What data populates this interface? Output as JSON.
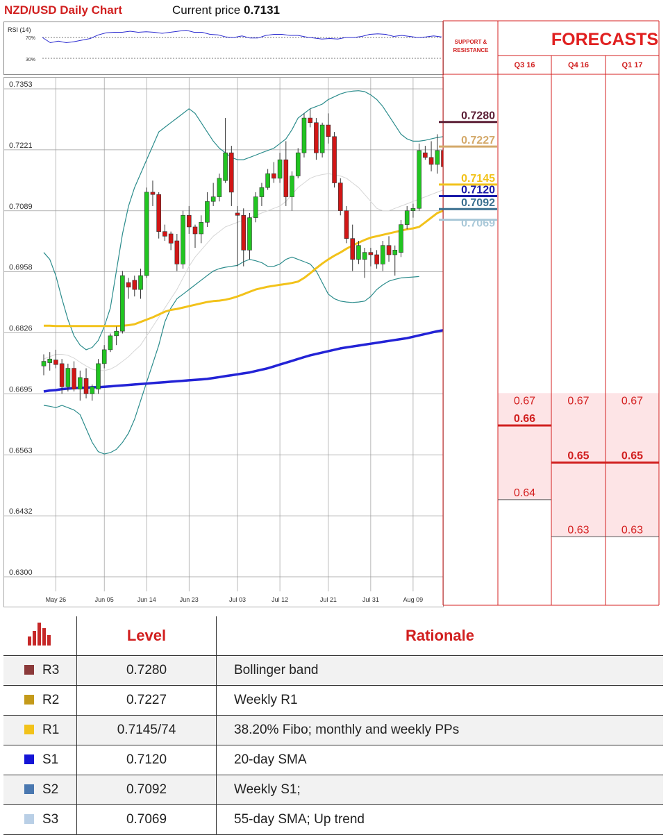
{
  "header": {
    "title": "NZD/USD Daily Chart",
    "price_prefix": "Current price ",
    "price_value": "0.7131"
  },
  "rsi": {
    "label": "RSI (14)",
    "levels": [
      "70%",
      "30%"
    ],
    "values": [
      70,
      60,
      63,
      60,
      62,
      65,
      68,
      75,
      79,
      80,
      80,
      82,
      80,
      81,
      80,
      78,
      80,
      82,
      84,
      80,
      80,
      76,
      75,
      71,
      70,
      73,
      69,
      69,
      74,
      76,
      76,
      74,
      74,
      71,
      69,
      67,
      68,
      67,
      70,
      70,
      72,
      76,
      77,
      76,
      72,
      74,
      72,
      70,
      71,
      73,
      71
    ]
  },
  "chart_data": {
    "type": "candlestick",
    "title": "NZD/USD Daily Chart",
    "ylim": [
      0.63,
      0.7353
    ],
    "y_ticks": [
      "0.7353",
      "0.7221",
      "0.7089",
      "0.6958",
      "0.6826",
      "0.6695",
      "0.6563",
      "0.6432",
      "0.6300"
    ],
    "x_tick_labels": [
      "May 26",
      "Jun 05",
      "Jun 14",
      "Jun 23",
      "Jul 03",
      "Jul 12",
      "Jul 21",
      "Jul 31",
      "Aug 09"
    ],
    "x_tick_indices": [
      2,
      10,
      17,
      24,
      32,
      39,
      47,
      54,
      61
    ],
    "candles": [
      {
        "o": 0.6755,
        "h": 0.678,
        "l": 0.6735,
        "c": 0.6765
      },
      {
        "o": 0.6762,
        "h": 0.6785,
        "l": 0.6745,
        "c": 0.677
      },
      {
        "o": 0.6768,
        "h": 0.679,
        "l": 0.675,
        "c": 0.6758
      },
      {
        "o": 0.676,
        "h": 0.677,
        "l": 0.6695,
        "c": 0.671
      },
      {
        "o": 0.671,
        "h": 0.676,
        "l": 0.67,
        "c": 0.675
      },
      {
        "o": 0.675,
        "h": 0.6765,
        "l": 0.67,
        "c": 0.6705
      },
      {
        "o": 0.6705,
        "h": 0.6745,
        "l": 0.668,
        "c": 0.673
      },
      {
        "o": 0.6728,
        "h": 0.675,
        "l": 0.6685,
        "c": 0.6695
      },
      {
        "o": 0.6695,
        "h": 0.6715,
        "l": 0.668,
        "c": 0.671
      },
      {
        "o": 0.6705,
        "h": 0.677,
        "l": 0.6695,
        "c": 0.676
      },
      {
        "o": 0.676,
        "h": 0.68,
        "l": 0.675,
        "c": 0.679
      },
      {
        "o": 0.679,
        "h": 0.6825,
        "l": 0.6785,
        "c": 0.682
      },
      {
        "o": 0.682,
        "h": 0.684,
        "l": 0.68,
        "c": 0.683
      },
      {
        "o": 0.683,
        "h": 0.696,
        "l": 0.6825,
        "c": 0.695
      },
      {
        "o": 0.6935,
        "h": 0.6945,
        "l": 0.69,
        "c": 0.6925
      },
      {
        "o": 0.694,
        "h": 0.695,
        "l": 0.6905,
        "c": 0.692
      },
      {
        "o": 0.692,
        "h": 0.6965,
        "l": 0.69,
        "c": 0.695
      },
      {
        "o": 0.695,
        "h": 0.714,
        "l": 0.6945,
        "c": 0.713
      },
      {
        "o": 0.713,
        "h": 0.7155,
        "l": 0.71,
        "c": 0.7125
      },
      {
        "o": 0.7125,
        "h": 0.713,
        "l": 0.703,
        "c": 0.7045
      },
      {
        "o": 0.7045,
        "h": 0.706,
        "l": 0.7025,
        "c": 0.7035
      },
      {
        "o": 0.704,
        "h": 0.7045,
        "l": 0.7005,
        "c": 0.702
      },
      {
        "o": 0.7025,
        "h": 0.704,
        "l": 0.696,
        "c": 0.6975
      },
      {
        "o": 0.6975,
        "h": 0.709,
        "l": 0.6965,
        "c": 0.708
      },
      {
        "o": 0.708,
        "h": 0.71,
        "l": 0.704,
        "c": 0.7055
      },
      {
        "o": 0.7055,
        "h": 0.706,
        "l": 0.701,
        "c": 0.704
      },
      {
        "o": 0.704,
        "h": 0.708,
        "l": 0.702,
        "c": 0.7065
      },
      {
        "o": 0.7065,
        "h": 0.713,
        "l": 0.7055,
        "c": 0.711
      },
      {
        "o": 0.711,
        "h": 0.715,
        "l": 0.71,
        "c": 0.712
      },
      {
        "o": 0.712,
        "h": 0.717,
        "l": 0.711,
        "c": 0.716
      },
      {
        "o": 0.7155,
        "h": 0.729,
        "l": 0.715,
        "c": 0.7215
      },
      {
        "o": 0.7215,
        "h": 0.723,
        "l": 0.71,
        "c": 0.713
      },
      {
        "o": 0.7085,
        "h": 0.71,
        "l": 0.697,
        "c": 0.708
      },
      {
        "o": 0.708,
        "h": 0.7095,
        "l": 0.697,
        "c": 0.7005
      },
      {
        "o": 0.7005,
        "h": 0.7085,
        "l": 0.6985,
        "c": 0.7075
      },
      {
        "o": 0.7075,
        "h": 0.713,
        "l": 0.7065,
        "c": 0.712
      },
      {
        "o": 0.712,
        "h": 0.715,
        "l": 0.71,
        "c": 0.714
      },
      {
        "o": 0.714,
        "h": 0.718,
        "l": 0.7135,
        "c": 0.717
      },
      {
        "o": 0.717,
        "h": 0.7195,
        "l": 0.715,
        "c": 0.716
      },
      {
        "o": 0.716,
        "h": 0.7215,
        "l": 0.715,
        "c": 0.72
      },
      {
        "o": 0.72,
        "h": 0.724,
        "l": 0.71,
        "c": 0.712
      },
      {
        "o": 0.712,
        "h": 0.7175,
        "l": 0.709,
        "c": 0.7165
      },
      {
        "o": 0.7165,
        "h": 0.7225,
        "l": 0.716,
        "c": 0.7215
      },
      {
        "o": 0.7215,
        "h": 0.73,
        "l": 0.7205,
        "c": 0.729
      },
      {
        "o": 0.729,
        "h": 0.731,
        "l": 0.727,
        "c": 0.728
      },
      {
        "o": 0.728,
        "h": 0.729,
        "l": 0.72,
        "c": 0.7215
      },
      {
        "o": 0.7215,
        "h": 0.728,
        "l": 0.7205,
        "c": 0.7275
      },
      {
        "o": 0.7275,
        "h": 0.73,
        "l": 0.7235,
        "c": 0.725
      },
      {
        "o": 0.725,
        "h": 0.726,
        "l": 0.714,
        "c": 0.715
      },
      {
        "o": 0.715,
        "h": 0.716,
        "l": 0.708,
        "c": 0.709
      },
      {
        "o": 0.709,
        "h": 0.71,
        "l": 0.702,
        "c": 0.703
      },
      {
        "o": 0.703,
        "h": 0.706,
        "l": 0.696,
        "c": 0.6985
      },
      {
        "o": 0.6985,
        "h": 0.7025,
        "l": 0.6975,
        "c": 0.7015
      },
      {
        "o": 0.6985,
        "h": 0.701,
        "l": 0.6945,
        "c": 0.7
      },
      {
        "o": 0.7,
        "h": 0.701,
        "l": 0.697,
        "c": 0.6995
      },
      {
        "o": 0.6995,
        "h": 0.7005,
        "l": 0.6965,
        "c": 0.6975
      },
      {
        "o": 0.6975,
        "h": 0.7025,
        "l": 0.696,
        "c": 0.7015
      },
      {
        "o": 0.7015,
        "h": 0.7035,
        "l": 0.698,
        "c": 0.6995
      },
      {
        "o": 0.6995,
        "h": 0.7015,
        "l": 0.695,
        "c": 0.7005
      },
      {
        "o": 0.7,
        "h": 0.707,
        "l": 0.699,
        "c": 0.706
      },
      {
        "o": 0.706,
        "h": 0.71,
        "l": 0.705,
        "c": 0.709
      },
      {
        "o": 0.709,
        "h": 0.7105,
        "l": 0.7075,
        "c": 0.7095
      },
      {
        "o": 0.7095,
        "h": 0.7235,
        "l": 0.709,
        "c": 0.722
      },
      {
        "o": 0.7215,
        "h": 0.723,
        "l": 0.72,
        "c": 0.7205
      },
      {
        "o": 0.7205,
        "h": 0.724,
        "l": 0.7175,
        "c": 0.719
      },
      {
        "o": 0.719,
        "h": 0.7255,
        "l": 0.717,
        "c": 0.722
      },
      {
        "o": 0.722,
        "h": 0.723,
        "l": 0.717,
        "c": 0.7185
      },
      {
        "o": 0.7185,
        "h": 0.723,
        "l": 0.715,
        "c": 0.716
      },
      {
        "o": 0.7165,
        "h": 0.7225,
        "l": 0.715,
        "c": 0.718
      },
      {
        "o": 0.718,
        "h": 0.722,
        "l": 0.714,
        "c": 0.715
      },
      {
        "o": 0.714,
        "h": 0.7155,
        "l": 0.711,
        "c": 0.7125
      },
      {
        "o": 0.7125,
        "h": 0.7155,
        "l": 0.709,
        "c": 0.715
      },
      {
        "o": 0.715,
        "h": 0.7155,
        "l": 0.7125,
        "c": 0.7131
      }
    ],
    "series": [
      {
        "name": "",
        "color": "#2323d6",
        "values": [
          0.67,
          0.6702,
          0.6703,
          0.6705,
          0.6706,
          0.6707,
          0.6708,
          0.6708,
          0.6709,
          0.6709,
          0.671,
          0.6711,
          0.6712,
          0.6713,
          0.6714,
          0.6715,
          0.6716,
          0.6717,
          0.6718,
          0.6719,
          0.672,
          0.6721,
          0.6722,
          0.6723,
          0.6724,
          0.6725,
          0.6726,
          0.6727,
          0.6729,
          0.6731,
          0.6733,
          0.6735,
          0.6737,
          0.6739,
          0.6741,
          0.6744,
          0.6747,
          0.675,
          0.6754,
          0.6758,
          0.6762,
          0.6766,
          0.677,
          0.6774,
          0.6778,
          0.6781,
          0.6784,
          0.6787,
          0.679,
          0.6793,
          0.6795,
          0.6797,
          0.6799,
          0.6801,
          0.6803,
          0.6805,
          0.6807,
          0.6809,
          0.6811,
          0.6813,
          0.6815,
          0.6818,
          0.6821,
          0.6824,
          0.6827,
          0.683,
          0.6832,
          0.6834,
          0.6836,
          0.6838,
          0.684,
          0.6842,
          0.6845
        ]
      },
      {
        "name": "",
        "color": "#f2c21a",
        "values": [
          0.6842,
          0.6842,
          0.6841,
          0.6841,
          0.6841,
          0.6841,
          0.6841,
          0.6841,
          0.6841,
          0.6841,
          0.6841,
          0.6841,
          0.6841,
          0.6842,
          0.6843,
          0.6845,
          0.685,
          0.6855,
          0.686,
          0.6866,
          0.6872,
          0.6876,
          0.6878,
          0.6881,
          0.6884,
          0.6887,
          0.689,
          0.6893,
          0.6895,
          0.6896,
          0.6898,
          0.6901,
          0.6905,
          0.691,
          0.6915,
          0.692,
          0.6923,
          0.6926,
          0.6928,
          0.693,
          0.6932,
          0.6934,
          0.6937,
          0.6945,
          0.6955,
          0.6966,
          0.6976,
          0.6985,
          0.6993,
          0.7,
          0.7008,
          0.7015,
          0.7021,
          0.7027,
          0.7032,
          0.7035,
          0.7038,
          0.7041,
          0.7044,
          0.7047,
          0.705,
          0.7052,
          0.7055,
          0.7065,
          0.7075,
          0.7085,
          0.709,
          0.7095,
          0.7098,
          0.7101,
          0.7105,
          0.7109,
          0.7114
        ]
      },
      {
        "name": "",
        "color": "#d6d6d6",
        "values": [
          0.677,
          0.6775,
          0.678,
          0.678,
          0.6778,
          0.6772,
          0.6763,
          0.6755,
          0.6748,
          0.6745,
          0.6745,
          0.6748,
          0.6755,
          0.6765,
          0.6775,
          0.6788,
          0.68,
          0.682,
          0.684,
          0.686,
          0.688,
          0.69,
          0.692,
          0.6945,
          0.697,
          0.699,
          0.7005,
          0.702,
          0.7035,
          0.7045,
          0.7055,
          0.706,
          0.7065,
          0.707,
          0.7075,
          0.708,
          0.7085,
          0.709,
          0.7095,
          0.71,
          0.711,
          0.7125,
          0.714,
          0.715,
          0.716,
          0.7165,
          0.7168,
          0.717,
          0.7168,
          0.7165,
          0.716,
          0.715,
          0.714,
          0.7125,
          0.711,
          0.7095,
          0.709,
          0.709,
          0.7095,
          0.71,
          0.7105,
          0.711,
          0.7115,
          0.712,
          0.7125,
          0.713,
          0.7135,
          0.714,
          0.714,
          0.714,
          0.714,
          0.714,
          0.714
        ]
      },
      {
        "name": "",
        "color": "#2b8c8c",
        "values": [
          0.7,
          0.6985,
          0.695,
          0.69,
          0.6855,
          0.682,
          0.68,
          0.679,
          0.6795,
          0.681,
          0.684,
          0.688,
          0.696,
          0.704,
          0.71,
          0.714,
          0.717,
          0.72,
          0.723,
          0.726,
          0.727,
          0.728,
          0.729,
          0.73,
          0.731,
          0.73,
          0.728,
          0.726,
          0.724,
          0.7225,
          0.7215,
          0.7205,
          0.72,
          0.72,
          0.7205,
          0.721,
          0.7215,
          0.722,
          0.7225,
          0.7235,
          0.7245,
          0.7265,
          0.729,
          0.73,
          0.731,
          0.7315,
          0.732,
          0.733,
          0.7336,
          0.7342,
          0.7346,
          0.7348,
          0.7349,
          0.7347,
          0.734,
          0.733,
          0.7315,
          0.7295,
          0.7275,
          0.7255,
          0.7245,
          0.724,
          0.724,
          0.7242,
          0.7245,
          0.7248,
          0.725,
          0.7252,
          0.7254,
          0.7256,
          0.7258,
          0.726,
          0.7263
        ]
      },
      {
        "name": "",
        "color": "#2b8c8c",
        "values": [
          0.667,
          0.6668,
          0.6665,
          0.667,
          0.6665,
          0.666,
          0.665,
          0.662,
          0.659,
          0.657,
          0.6565,
          0.6568,
          0.6575,
          0.659,
          0.661,
          0.664,
          0.668,
          0.672,
          0.676,
          0.68,
          0.685,
          0.688,
          0.69,
          0.691,
          0.692,
          0.693,
          0.694,
          0.695,
          0.696,
          0.6965,
          0.6968,
          0.697,
          0.6972,
          0.698,
          0.6985,
          0.6982,
          0.6978,
          0.697,
          0.697,
          0.6975,
          0.6985,
          0.699,
          0.6985,
          0.698,
          0.6975,
          0.696,
          0.6935,
          0.691,
          0.69,
          0.6895,
          0.6893,
          0.6892,
          0.6893,
          0.6895,
          0.6905,
          0.692,
          0.693,
          0.6938,
          0.6942,
          0.6945,
          0.6946,
          0.6947,
          0.6948
        ]
      }
    ]
  },
  "support_resistance": {
    "header_line1": "SUPPORT &",
    "header_line2": "RESISTANCE",
    "markers": [
      {
        "value": "0.7280",
        "price": 0.728,
        "color": "#5c1f36"
      },
      {
        "value": "0.7227",
        "price": 0.7227,
        "color": "#d4a96a"
      },
      {
        "value": "0.7145",
        "price": 0.7145,
        "color": "#f2c21a"
      },
      {
        "value": "0.7120",
        "price": 0.712,
        "color": "#1a1aa8"
      },
      {
        "value": "0.7092",
        "price": 0.7092,
        "color": "#3a6f8f"
      },
      {
        "value": "0.7069",
        "price": 0.7069,
        "color": "#a9c8d8"
      }
    ]
  },
  "forecasts": {
    "title": "FORECASTS",
    "columns": [
      {
        "label": "Q3 16",
        "high": "0.67",
        "mid": "0.66",
        "low": "0.64",
        "high_price": 0.6695,
        "mid_price": 0.6625,
        "low_price": 0.6465
      },
      {
        "label": "Q4 16",
        "high": "0.67",
        "mid": "0.65",
        "low": "0.63",
        "high_price": 0.6695,
        "mid_price": 0.6545,
        "low_price": 0.6385
      },
      {
        "label": "Q1 17",
        "high": "0.67",
        "mid": "0.65",
        "low": "0.63",
        "high_price": 0.6695,
        "mid_price": 0.6545,
        "low_price": 0.6385
      }
    ]
  },
  "levels_table": {
    "headers": [
      "Level",
      "Rationale"
    ],
    "rows": [
      {
        "code": "R3",
        "color": "#8b3a3a",
        "level": "0.7280",
        "rationale": "Bollinger band"
      },
      {
        "code": "R2",
        "color": "#c49a1a",
        "level": "0.7227",
        "rationale": "Weekly R1"
      },
      {
        "code": "R1",
        "color": "#f2c21a",
        "level": "0.7145/74",
        "rationale": "38.20% Fibo; monthly and weekly PPs"
      },
      {
        "code": "S1",
        "color": "#1414d6",
        "level": "0.7120",
        "rationale": "20-day SMA"
      },
      {
        "code": "S2",
        "color": "#4a78b0",
        "level": "0.7092",
        "rationale": "Weekly S1;"
      },
      {
        "code": "S3",
        "color": "#b9cfe6",
        "level": "0.7069",
        "rationale": "55-day SMA;  Up trend"
      }
    ]
  }
}
